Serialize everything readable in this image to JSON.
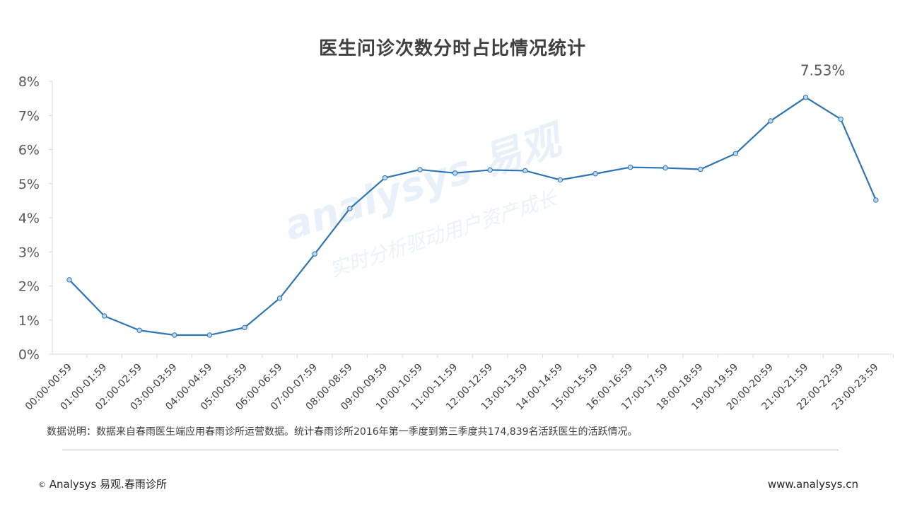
{
  "chart_data": {
    "type": "line",
    "title": "医生问诊次数分时占比情况统计",
    "categories": [
      "00:00-00:59",
      "01:00-01:59",
      "02:00-02:59",
      "03:00-03:59",
      "04:00-04:59",
      "05:00-05:59",
      "06:00-06:59",
      "07:00-07:59",
      "08:00-08:59",
      "09:00-09:59",
      "10:00-10:59",
      "11:00-11:59",
      "12:00-12:59",
      "13:00-13:59",
      "14:00-14:59",
      "15:00-15:59",
      "16:00-16:59",
      "17:00-17:59",
      "18:00-18:59",
      "19:00-19:59",
      "20:00-20:59",
      "21:00-21:59",
      "22:00-22:59",
      "23:00-23:59"
    ],
    "values": [
      2.18,
      1.12,
      0.7,
      0.56,
      0.56,
      0.78,
      1.64,
      2.94,
      4.27,
      5.17,
      5.41,
      5.31,
      5.4,
      5.38,
      5.11,
      5.29,
      5.48,
      5.46,
      5.42,
      5.88,
      6.84,
      7.53,
      6.89,
      4.52
    ],
    "ylim": [
      0,
      8
    ],
    "yticks": [
      "0%",
      "1%",
      "2%",
      "3%",
      "4%",
      "5%",
      "6%",
      "7%",
      "8%"
    ],
    "peak_label": "7.53%",
    "line_color": "#2e75b6",
    "marker_fill": "#bdd7ee",
    "grid": false
  },
  "watermark": {
    "brand": "analysys 易观",
    "slogan": "实时分析驱动用户资产成长"
  },
  "note": "数据说明：数据来自春雨医生端应用春雨诊所运营数据。统计春雨诊所2016年第一季度到第三季度共174,839名活跃医生的活跃情况。",
  "footer": {
    "copyright_symbol": "©",
    "left": "Analysys  易观.春雨诊所",
    "right": "www.analysys.cn"
  }
}
